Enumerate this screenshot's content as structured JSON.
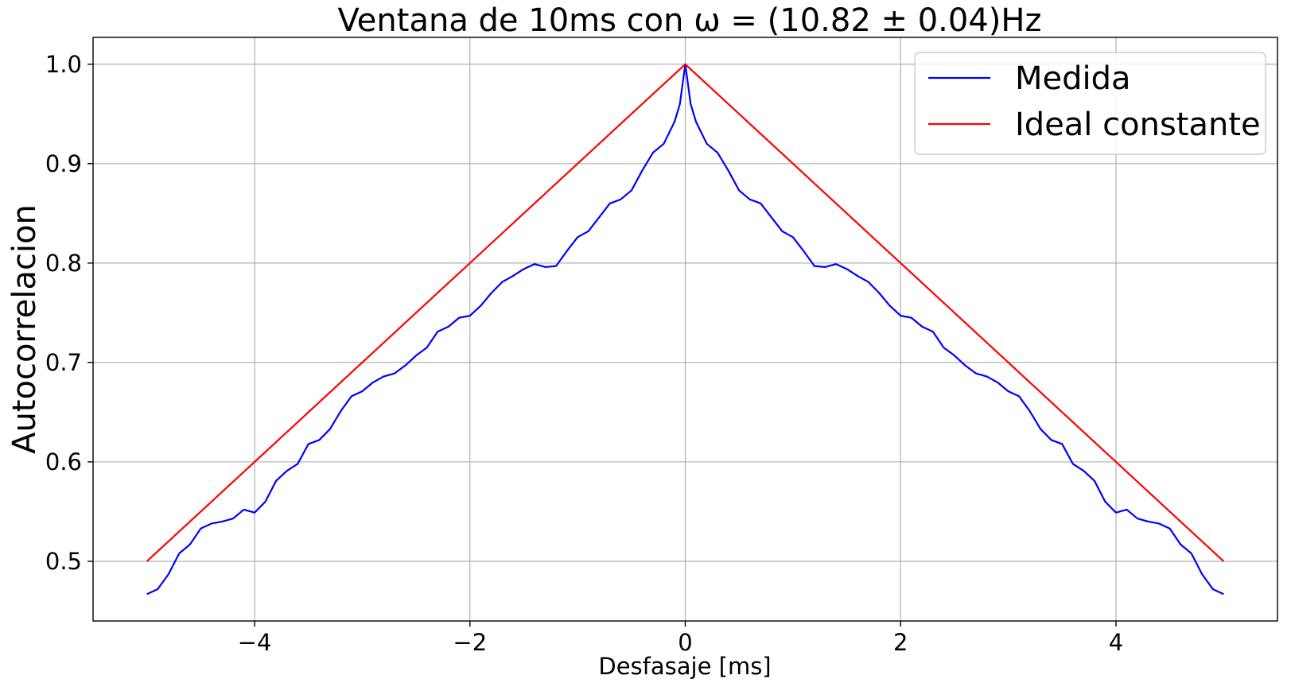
{
  "chart_data": {
    "type": "line",
    "title": "Ventana de 10ms con ω = (10.82 ± 0.04)Hz",
    "xlabel": "Desfasaje [ms]",
    "ylabel": "Autocorrelacion",
    "xlim": [
      -5.5,
      5.5
    ],
    "ylim": [
      0.44,
      1.027
    ],
    "xticks": [
      -4,
      -2,
      0,
      2,
      4
    ],
    "xtick_labels": [
      "−4",
      "−2",
      "0",
      "2",
      "4"
    ],
    "yticks": [
      0.5,
      0.6,
      0.7,
      0.8,
      0.9,
      1.0
    ],
    "ytick_labels": [
      "0.5",
      "0.6",
      "0.7",
      "0.8",
      "0.9",
      "1.0"
    ],
    "grid": true,
    "legend_position": "upper right",
    "series": [
      {
        "name": "Medida",
        "color": "#0000ff",
        "x": [
          -5.0,
          -4.9,
          -4.8,
          -4.7,
          -4.6,
          -4.5,
          -4.4,
          -4.3,
          -4.2,
          -4.1,
          -4.0,
          -3.9,
          -3.8,
          -3.7,
          -3.6,
          -3.5,
          -3.4,
          -3.3,
          -3.2,
          -3.1,
          -3.0,
          -2.9,
          -2.8,
          -2.7,
          -2.6,
          -2.5,
          -2.4,
          -2.3,
          -2.2,
          -2.1,
          -2.0,
          -1.9,
          -1.8,
          -1.7,
          -1.6,
          -1.5,
          -1.4,
          -1.3,
          -1.2,
          -1.1,
          -1.0,
          -0.9,
          -0.8,
          -0.7,
          -0.6,
          -0.5,
          -0.4,
          -0.3,
          -0.2,
          -0.1,
          -0.05,
          0.0,
          0.05,
          0.1,
          0.2,
          0.3,
          0.4,
          0.5,
          0.6,
          0.7,
          0.8,
          0.9,
          1.0,
          1.1,
          1.2,
          1.3,
          1.4,
          1.5,
          1.6,
          1.7,
          1.8,
          1.9,
          2.0,
          2.1,
          2.2,
          2.3,
          2.4,
          2.5,
          2.6,
          2.7,
          2.8,
          2.9,
          3.0,
          3.1,
          3.2,
          3.3,
          3.4,
          3.5,
          3.6,
          3.7,
          3.8,
          3.9,
          4.0,
          4.1,
          4.2,
          4.3,
          4.4,
          4.5,
          4.6,
          4.7,
          4.8,
          4.9,
          5.0
        ],
        "y": [
          0.467,
          0.472,
          0.487,
          0.508,
          0.517,
          0.533,
          0.538,
          0.54,
          0.543,
          0.552,
          0.549,
          0.56,
          0.581,
          0.591,
          0.598,
          0.618,
          0.622,
          0.633,
          0.651,
          0.666,
          0.671,
          0.68,
          0.686,
          0.689,
          0.697,
          0.707,
          0.715,
          0.731,
          0.736,
          0.745,
          0.747,
          0.757,
          0.77,
          0.781,
          0.787,
          0.794,
          0.799,
          0.796,
          0.797,
          0.812,
          0.826,
          0.832,
          0.846,
          0.86,
          0.864,
          0.873,
          0.893,
          0.911,
          0.92,
          0.942,
          0.96,
          1.0,
          0.96,
          0.942,
          0.92,
          0.911,
          0.893,
          0.873,
          0.864,
          0.86,
          0.846,
          0.832,
          0.826,
          0.812,
          0.797,
          0.796,
          0.799,
          0.794,
          0.787,
          0.781,
          0.77,
          0.757,
          0.747,
          0.745,
          0.736,
          0.731,
          0.715,
          0.707,
          0.697,
          0.689,
          0.686,
          0.68,
          0.671,
          0.666,
          0.651,
          0.633,
          0.622,
          0.618,
          0.598,
          0.591,
          0.581,
          0.56,
          0.549,
          0.552,
          0.543,
          0.54,
          0.538,
          0.533,
          0.517,
          0.508,
          0.487,
          0.472,
          0.467
        ]
      },
      {
        "name": "Ideal constante",
        "color": "#ff0000",
        "x": [
          -5.0,
          0.0,
          5.0
        ],
        "y": [
          0.5,
          1.0,
          0.5
        ]
      }
    ]
  }
}
